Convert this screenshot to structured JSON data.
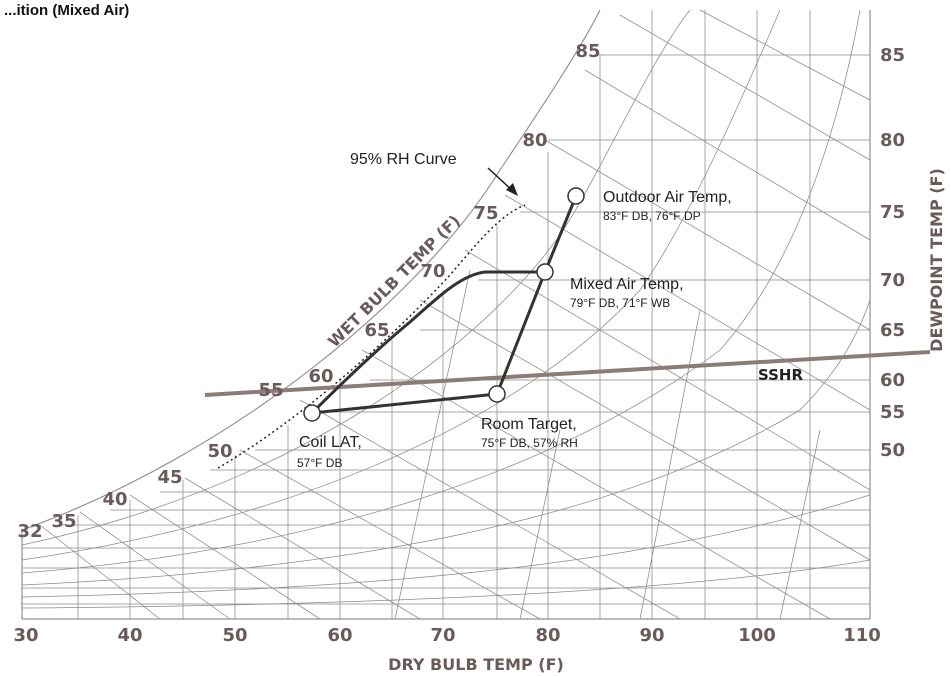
{
  "page": {
    "title": "...ition (Mixed Air)"
  },
  "axes": {
    "x_label": "DRY BULB TEMP (F)",
    "x_ticks": [
      "30",
      "40",
      "50",
      "60",
      "70",
      "80",
      "90",
      "100",
      "110"
    ],
    "dewpoint_label": "DEWPOINT TEMP (F)",
    "dewpoint_ticks": [
      "85",
      "80",
      "75",
      "70",
      "65",
      "60",
      "55",
      "50"
    ],
    "wetbulb_label": "WET BULB TEMP (F)",
    "wetbulb_ticks": [
      "32",
      "35",
      "40",
      "45",
      "50",
      "55",
      "60",
      "65",
      "70",
      "75",
      "80",
      "85"
    ]
  },
  "annotations": {
    "rh_curve": "95% RH Curve",
    "ssh_ratio": "SSHR",
    "outdoor": {
      "title": "Outdoor Air Temp,",
      "detail": "83°F DB, 76°F DP"
    },
    "mixed": {
      "title": "Mixed Air Temp,",
      "detail": "79°F DB, 71°F WB"
    },
    "room": {
      "title": "Room Target,",
      "detail": "75°F DB, 57% RH"
    },
    "coil": {
      "title": "Coil LAT,",
      "detail": "57°F DB"
    }
  },
  "colors": {
    "grid": "#8a8a8a",
    "tick_text": "#6a5a5a",
    "ssh_line": "#8c7c78",
    "process_line": "#333333"
  },
  "chart_data": {
    "type": "psychrometric",
    "x_axis": {
      "label": "DRY BULB TEMP (F)",
      "range": [
        30,
        110
      ]
    },
    "y_axis": {
      "label": "DEWPOINT TEMP (F)",
      "range": [
        32,
        85
      ]
    },
    "points": [
      {
        "name": "Outdoor Air Temp",
        "db": 83,
        "dp": 76
      },
      {
        "name": "Mixed Air Temp",
        "db": 79,
        "wb": 71
      },
      {
        "name": "Room Target",
        "db": 75,
        "rh": 57
      },
      {
        "name": "Coil LAT",
        "db": 57
      }
    ],
    "curves": [
      "95% RH Curve",
      "SSHR"
    ]
  }
}
